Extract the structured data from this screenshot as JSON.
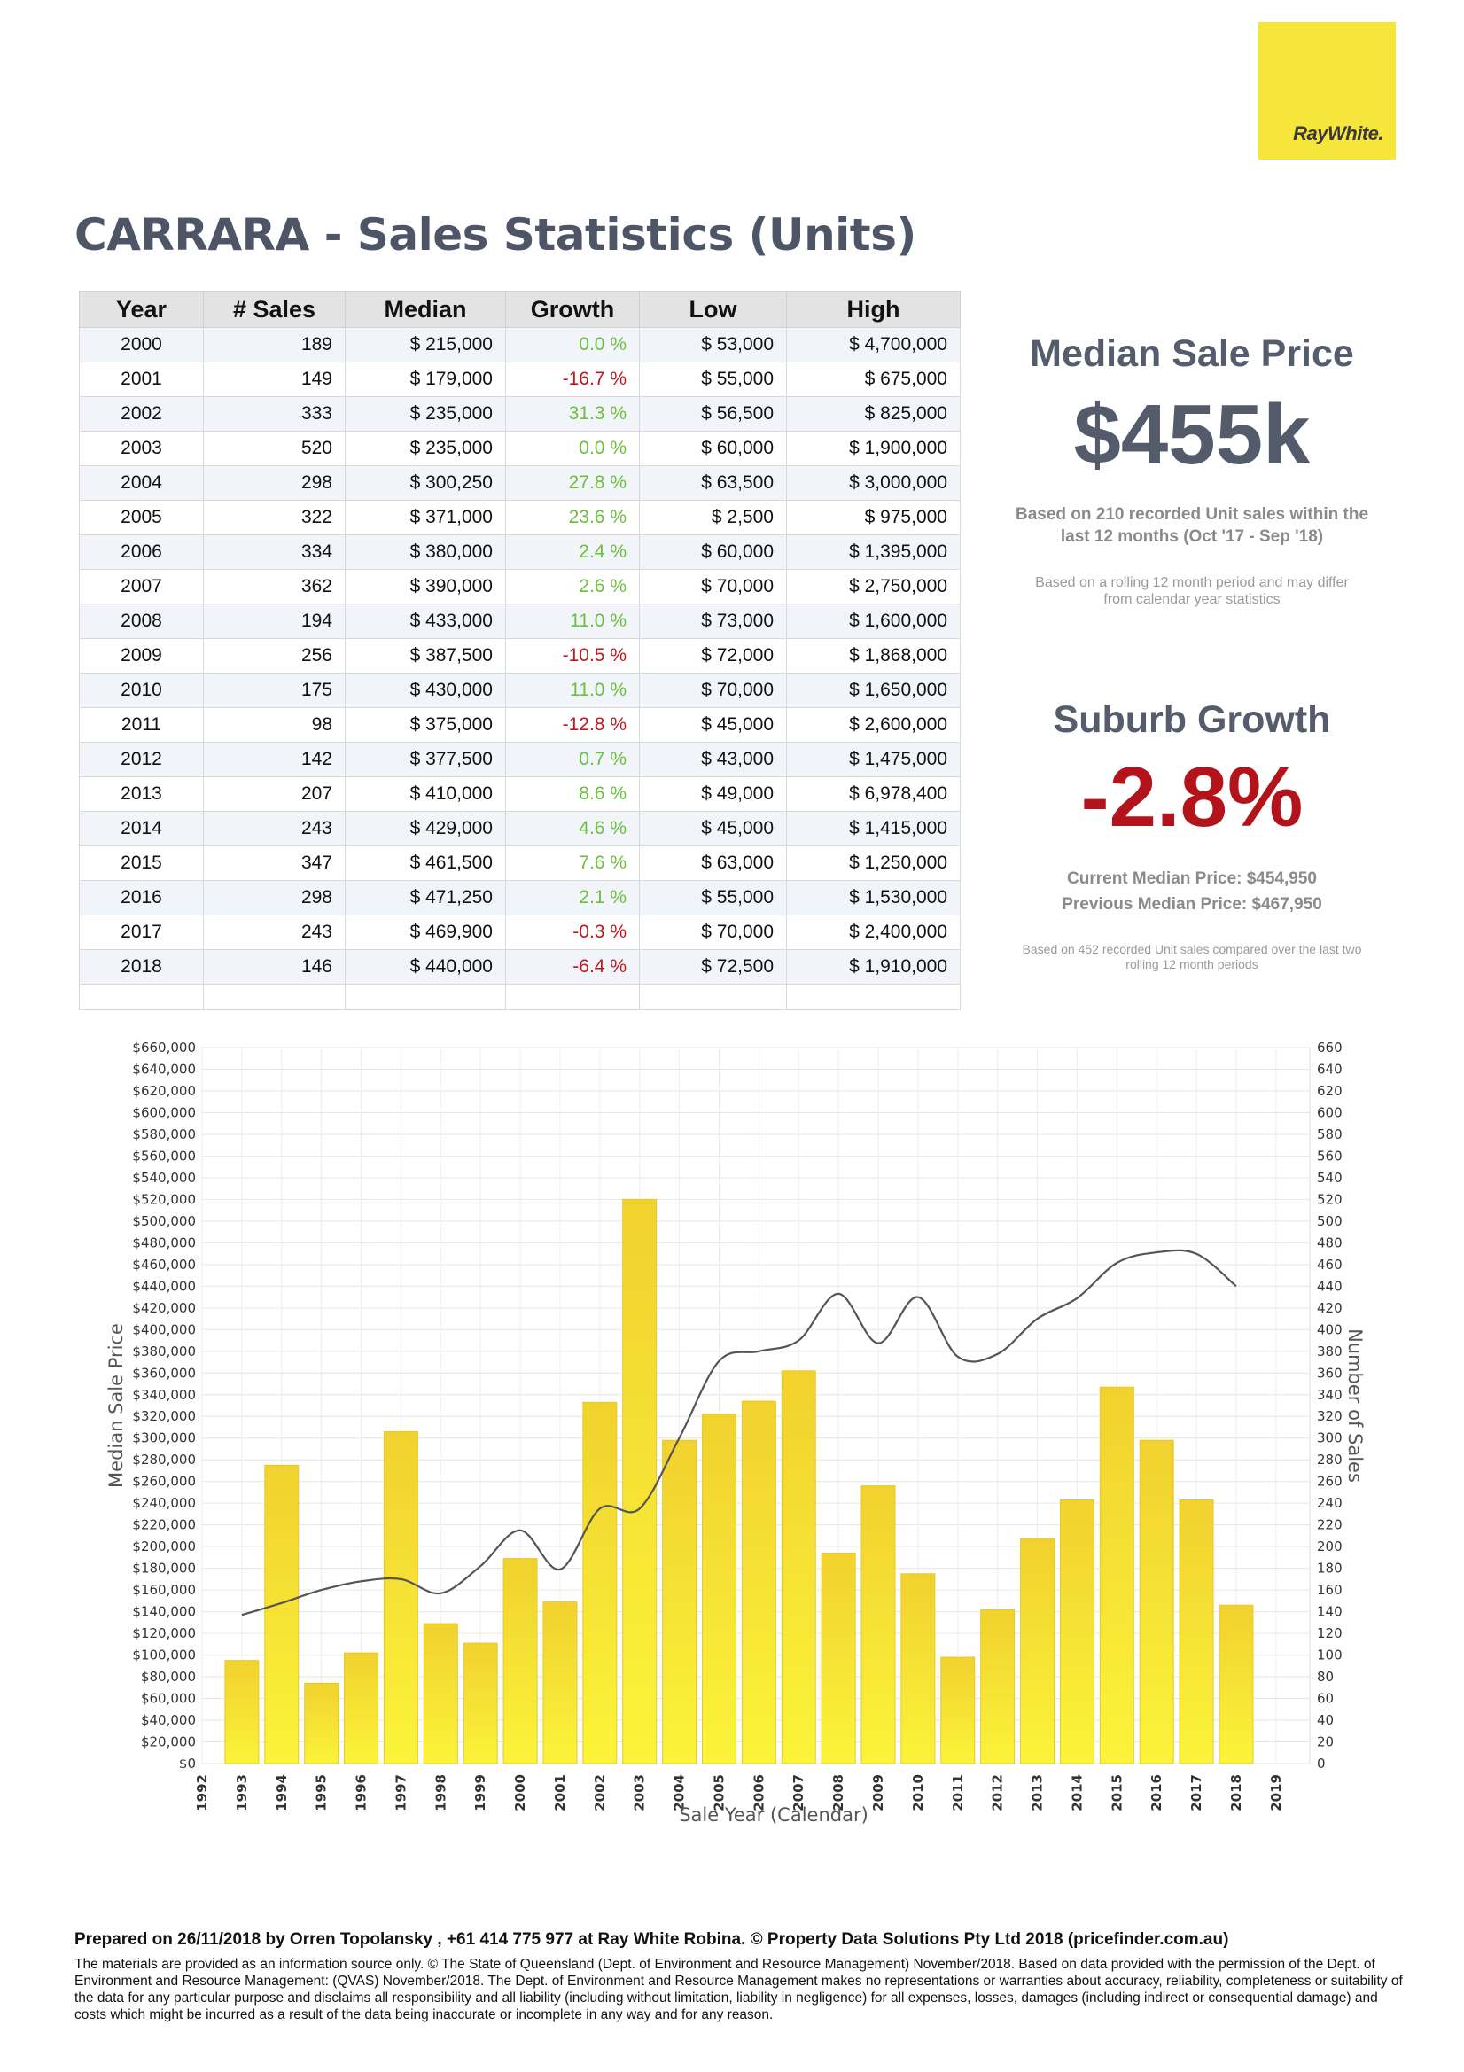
{
  "brand": {
    "logo_text": "RayWhite.",
    "accent_color": "#f6e53b"
  },
  "title": "CARRARA - Sales Statistics (Units)",
  "table": {
    "headers": [
      "Year",
      "# Sales",
      "Median",
      "Growth",
      "Low",
      "High"
    ],
    "rows": [
      [
        "2000",
        "189",
        "$ 215,000",
        "0.0 %",
        "$ 53,000",
        "$ 4,700,000"
      ],
      [
        "2001",
        "149",
        "$ 179,000",
        "-16.7 %",
        "$ 55,000",
        "$ 675,000"
      ],
      [
        "2002",
        "333",
        "$ 235,000",
        "31.3 %",
        "$ 56,500",
        "$ 825,000"
      ],
      [
        "2003",
        "520",
        "$ 235,000",
        "0.0 %",
        "$ 60,000",
        "$ 1,900,000"
      ],
      [
        "2004",
        "298",
        "$ 300,250",
        "27.8 %",
        "$ 63,500",
        "$ 3,000,000"
      ],
      [
        "2005",
        "322",
        "$ 371,000",
        "23.6 %",
        "$ 2,500",
        "$ 975,000"
      ],
      [
        "2006",
        "334",
        "$ 380,000",
        "2.4 %",
        "$ 60,000",
        "$ 1,395,000"
      ],
      [
        "2007",
        "362",
        "$ 390,000",
        "2.6 %",
        "$ 70,000",
        "$ 2,750,000"
      ],
      [
        "2008",
        "194",
        "$ 433,000",
        "11.0 %",
        "$ 73,000",
        "$ 1,600,000"
      ],
      [
        "2009",
        "256",
        "$ 387,500",
        "-10.5 %",
        "$ 72,000",
        "$ 1,868,000"
      ],
      [
        "2010",
        "175",
        "$ 430,000",
        "11.0 %",
        "$ 70,000",
        "$ 1,650,000"
      ],
      [
        "2011",
        "98",
        "$ 375,000",
        "-12.8 %",
        "$ 45,000",
        "$ 2,600,000"
      ],
      [
        "2012",
        "142",
        "$ 377,500",
        "0.7 %",
        "$ 43,000",
        "$ 1,475,000"
      ],
      [
        "2013",
        "207",
        "$ 410,000",
        "8.6 %",
        "$ 49,000",
        "$ 6,978,400"
      ],
      [
        "2014",
        "243",
        "$ 429,000",
        "4.6 %",
        "$ 45,000",
        "$ 1,415,000"
      ],
      [
        "2015",
        "347",
        "$ 461,500",
        "7.6 %",
        "$ 63,000",
        "$ 1,250,000"
      ],
      [
        "2016",
        "298",
        "$ 471,250",
        "2.1 %",
        "$ 55,000",
        "$ 1,530,000"
      ],
      [
        "2017",
        "243",
        "$ 469,900",
        "-0.3 %",
        "$ 70,000",
        "$ 2,400,000"
      ],
      [
        "2018",
        "146",
        "$ 440,000",
        "-6.4 %",
        "$ 72,500",
        "$ 1,910,000"
      ]
    ],
    "positive_color": "#6cbf3c",
    "negative_color": "#c0161c"
  },
  "median": {
    "heading": "Median Sale Price",
    "value": "$455k",
    "note_line1": "Based on 210 recorded Unit sales within the",
    "note_line2": "last 12 months (Oct '17 - Sep '18)",
    "small_line1": "Based on a rolling 12 month period and may differ",
    "small_line2": "from calendar year statistics"
  },
  "growth": {
    "heading": "Suburb Growth",
    "value": "-2.8%",
    "current": "Current Median Price: $454,950",
    "previous": "Previous Median Price: $467,950",
    "small_line1": "Based on 452 recorded Unit sales compared over the last two",
    "small_line2": "rolling 12 month periods"
  },
  "chart_data": {
    "type": "bar",
    "xlabel": "Sale Year (Calendar)",
    "ylabel": "Median Sale Price",
    "y2label": "Number of Sales",
    "x_ticks": [
      "1992",
      "1993",
      "1994",
      "1995",
      "1996",
      "1997",
      "1998",
      "1999",
      "2000",
      "2001",
      "2002",
      "2003",
      "2004",
      "2005",
      "2006",
      "2007",
      "2008",
      "2009",
      "2010",
      "2011",
      "2012",
      "2013",
      "2014",
      "2015",
      "2016",
      "2017",
      "2018",
      "2019"
    ],
    "ylim": [
      0,
      660000
    ],
    "y2lim": [
      0,
      660
    ],
    "y_ticks": [
      "$0",
      "$20,000",
      "$40,000",
      "$60,000",
      "$80,000",
      "$100,000",
      "$120,000",
      "$140,000",
      "$160,000",
      "$180,000",
      "$200,000",
      "$220,000",
      "$240,000",
      "$260,000",
      "$280,000",
      "$300,000",
      "$320,000",
      "$340,000",
      "$360,000",
      "$380,000",
      "$400,000",
      "$420,000",
      "$440,000",
      "$460,000",
      "$480,000",
      "$500,000",
      "$520,000",
      "$540,000",
      "$560,000",
      "$580,000",
      "$600,000",
      "$620,000",
      "$640,000",
      "$660,000"
    ],
    "y2_ticks": [
      "0",
      "20",
      "40",
      "60",
      "80",
      "100",
      "120",
      "140",
      "160",
      "180",
      "200",
      "220",
      "240",
      "260",
      "280",
      "300",
      "320",
      "340",
      "360",
      "380",
      "400",
      "420",
      "440",
      "460",
      "480",
      "500",
      "520",
      "540",
      "560",
      "580",
      "600",
      "620",
      "640",
      "660"
    ],
    "grid": true,
    "bar_color": "#f2d82e",
    "line_color": "#555555",
    "series": [
      {
        "name": "Number of Sales",
        "kind": "bar",
        "axis": "right",
        "x": [
          1993,
          1994,
          1995,
          1996,
          1997,
          1998,
          1999,
          2000,
          2001,
          2002,
          2003,
          2004,
          2005,
          2006,
          2007,
          2008,
          2009,
          2010,
          2011,
          2012,
          2013,
          2014,
          2015,
          2016,
          2017,
          2018
        ],
        "values": [
          95,
          275,
          74,
          102,
          306,
          129,
          111,
          189,
          149,
          333,
          520,
          298,
          322,
          334,
          362,
          194,
          256,
          175,
          98,
          142,
          207,
          243,
          347,
          298,
          243,
          146
        ]
      },
      {
        "name": "Median Sale Price",
        "kind": "line",
        "axis": "left",
        "x": [
          1993,
          1994,
          1995,
          1996,
          1997,
          1998,
          1999,
          2000,
          2001,
          2002,
          2003,
          2004,
          2005,
          2006,
          2007,
          2008,
          2009,
          2010,
          2011,
          2012,
          2013,
          2014,
          2015,
          2016,
          2017,
          2018
        ],
        "values": [
          137000,
          148000,
          160000,
          168000,
          170000,
          157000,
          182000,
          215000,
          179000,
          235000,
          235000,
          300250,
          371000,
          380000,
          390000,
          433000,
          387500,
          430000,
          375000,
          377500,
          410000,
          429000,
          461500,
          471250,
          469900,
          440000
        ]
      }
    ]
  },
  "footer": {
    "prepared": "Prepared on 26/11/2018 by Orren Topolansky , +61 414 775 977 at Ray White Robina. © Property Data Solutions Pty Ltd 2018 (pricefinder.com.au)",
    "disclaimer": "The materials are provided as an information source only. © The State of Queensland (Dept. of Environment and Resource Management) November/2018. Based on data provided with the permission of the Dept. of Environment and Resource Management: (QVAS) November/2018. The Dept. of Environment and Resource Management makes no representations or warranties about accuracy, reliability, completeness or suitability of the data for any particular purpose and disclaims all responsibility and all liability (including without limitation, liability in negligence) for all expenses, losses, damages (including indirect or consequential damage) and costs which might be incurred as a result of the data being inaccurate or incomplete in any way and for any reason."
  }
}
